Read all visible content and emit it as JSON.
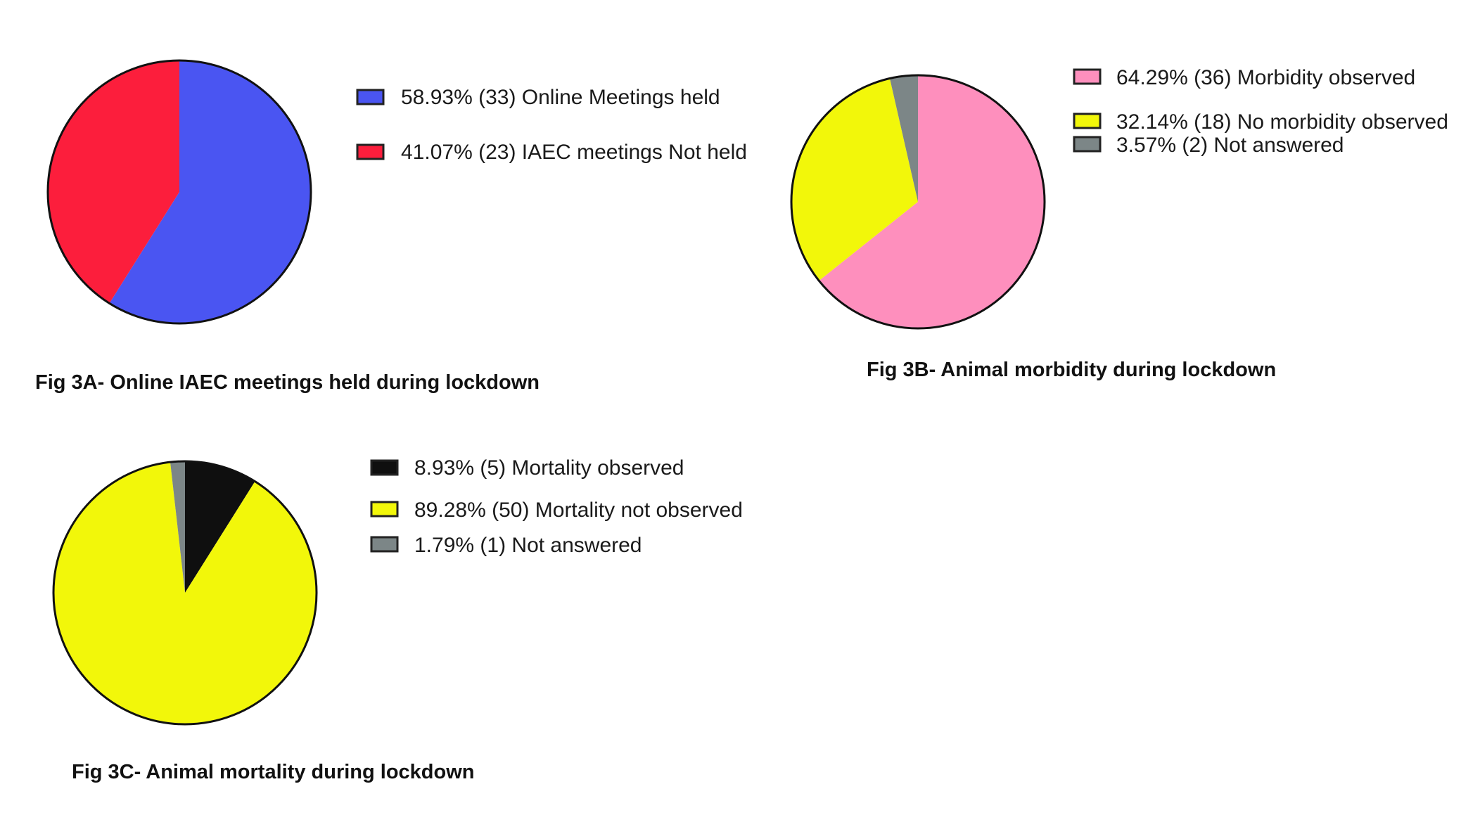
{
  "chart_data": [
    {
      "type": "pie",
      "caption": "Fig 3A- Online IAEC meetings held during lockdown",
      "legend_placement": "right",
      "slices": [
        {
          "label": "58.93%  (33) Online Meetings held",
          "percent": 58.93,
          "count": 33,
          "color": "#4a55f2"
        },
        {
          "label": "41.07% (23) IAEC meetings Not held",
          "percent": 41.07,
          "count": 23,
          "color": "#fc1e3c"
        }
      ]
    },
    {
      "type": "pie",
      "caption": "Fig 3B- Animal morbidity during lockdown",
      "legend_placement": "top-right",
      "slices": [
        {
          "label": "64.29% (36) Morbidity observed",
          "percent": 64.29,
          "count": 36,
          "color": "#fe8fbd"
        },
        {
          "label": "32.14% (18) No morbidity observed",
          "percent": 32.14,
          "count": 18,
          "color": "#f2f70a"
        },
        {
          "label": "3.57% (2) Not answered",
          "percent": 3.57,
          "count": 2,
          "color": "#7c8687"
        }
      ]
    },
    {
      "type": "pie",
      "caption": "Fig 3C- Animal mortality during lockdown",
      "legend_placement": "right",
      "slices": [
        {
          "label": "8.93% (5) Mortality observed",
          "percent": 8.93,
          "count": 5,
          "color": "#0f0f0f"
        },
        {
          "label": "89.28% (50) Mortality not observed",
          "percent": 89.28,
          "count": 50,
          "color": "#f2f70a"
        },
        {
          "label": "1.79% (1) Not answered",
          "percent": 1.79,
          "count": 1,
          "color": "#7c8687"
        }
      ]
    }
  ]
}
